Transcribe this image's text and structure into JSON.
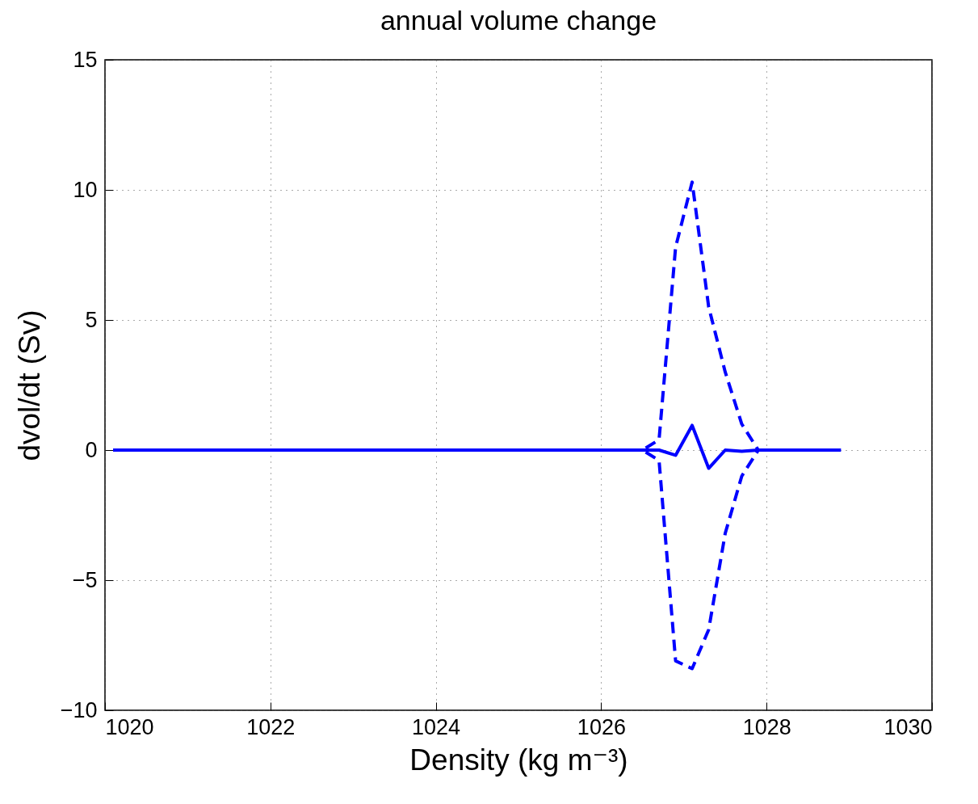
{
  "chart_data": {
    "type": "line",
    "title": "annual volume change",
    "xlabel": "Density (kg m⁻³)",
    "ylabel": "dvol/dt (Sv)",
    "x": [
      1020.1,
      1020.3,
      1020.5,
      1020.7,
      1020.9,
      1021.1,
      1021.3,
      1021.5,
      1021.7,
      1021.9,
      1022.1,
      1022.3,
      1022.5,
      1022.7,
      1022.9,
      1023.1,
      1023.3,
      1023.5,
      1023.7,
      1023.9,
      1024.1,
      1024.3,
      1024.5,
      1024.7,
      1024.9,
      1025.1,
      1025.3,
      1025.5,
      1025.7,
      1025.9,
      1026.1,
      1026.3,
      1026.5,
      1026.7,
      1026.9,
      1027.1,
      1027.3,
      1027.5,
      1027.7,
      1027.9,
      1028.1,
      1028.3,
      1028.5,
      1028.7,
      1028.9
    ],
    "series": [
      {
        "color": "#0000ff",
        "line_style": "solid",
        "values": [
          0,
          0,
          0,
          0,
          0,
          0,
          0,
          0,
          0,
          0,
          0,
          0,
          0,
          0,
          0,
          0,
          0,
          0,
          0,
          0,
          0,
          0,
          0,
          0,
          0,
          0,
          0,
          0,
          0,
          0,
          0,
          0,
          0,
          0,
          -0.2,
          0.95,
          -0.7,
          0,
          -0.05,
          0,
          0,
          0,
          0,
          0,
          0
        ]
      },
      {
        "color": "#0000ff",
        "line_style": "dashed",
        "values": [
          0,
          0,
          0,
          0,
          0,
          0,
          0,
          0,
          0,
          0,
          0,
          0,
          0,
          0,
          0,
          0,
          0,
          0,
          0,
          0,
          0,
          0,
          0,
          0,
          0,
          0,
          0,
          0,
          0,
          0,
          0,
          0,
          0,
          0.4,
          7.8,
          10.3,
          5.5,
          3.0,
          1.0,
          0,
          0,
          0,
          0,
          0,
          0
        ]
      },
      {
        "color": "#0000ff",
        "line_style": "dashed",
        "values": [
          0,
          0,
          0,
          0,
          0,
          0,
          0,
          0,
          0,
          0,
          0,
          0,
          0,
          0,
          0,
          0,
          0,
          0,
          0,
          0,
          0,
          0,
          0,
          0,
          0,
          0,
          0,
          0,
          0,
          0,
          0,
          0,
          0,
          -0.4,
          -8.1,
          -8.4,
          -6.9,
          -3.2,
          -1.0,
          0,
          0,
          0,
          0,
          0,
          0
        ]
      }
    ],
    "xlim": [
      1020,
      1030
    ],
    "xticks": [
      1020,
      1022,
      1024,
      1026,
      1028,
      1030
    ],
    "ylim": [
      -10,
      15
    ],
    "yticks": [
      -10,
      -5,
      0,
      5,
      10,
      15
    ],
    "grid": true,
    "marker": "none"
  }
}
